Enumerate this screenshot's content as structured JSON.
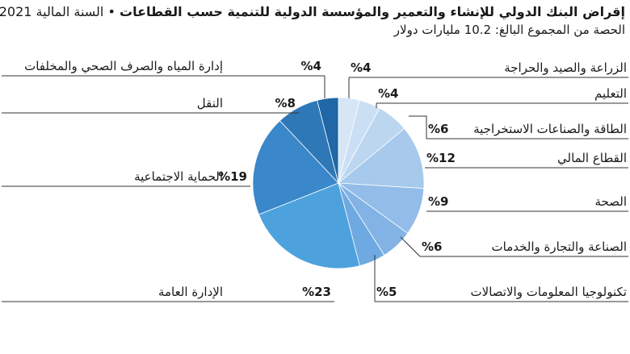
{
  "header": {
    "title_main": "إقراض البنك الدولي للإنشاء والتعمير والمؤسسة الدولية للتنمية حسب القطاعات",
    "title_sep": "•",
    "title_year": "السنة المالية 2021",
    "subtitle": "الحصة من المجموع البالغ: 10.2 مليارات دولار"
  },
  "chart_data": {
    "type": "pie",
    "title": "إقراض البنك الدولي للإنشاء والتعمير والمؤسسة الدولية للتنمية حسب القطاعات • السنة المالية 2021",
    "subtitle": "الحصة من المجموع البالغ: 10.2 مليارات دولار",
    "slices": [
      {
        "label": "الزراعة والصيد  والحراجة",
        "value": 4,
        "value_label": "%4",
        "color": "#d6e6f7"
      },
      {
        "label": "التعليم",
        "value": 4,
        "value_label": "%4",
        "color": "#cbdff4"
      },
      {
        "label": "الطاقة والصناعات الاستخراجية",
        "value": 6,
        "value_label": "%6",
        "color": "#bcd6f0"
      },
      {
        "label": "القطاع المالي",
        "value": 12,
        "value_label": "%12",
        "color": "#a6c9ec"
      },
      {
        "label": "الصحة",
        "value": 9,
        "value_label": "%9",
        "color": "#93bde8"
      },
      {
        "label": "الصناعة والتجارة والخدمات",
        "value": 6,
        "value_label": "%6",
        "color": "#82b3e4"
      },
      {
        "label": "تكنولوجيا المعلومات والاتصالات",
        "value": 5,
        "value_label": "%5",
        "color": "#6fa9e1"
      },
      {
        "label": "الإدارة العامة",
        "value": 23,
        "value_label": "%23",
        "color": "#4da2dd"
      },
      {
        "label": "الحماية الاجتماعية",
        "value": 19,
        "value_label": "%19",
        "color": "#3a87c9"
      },
      {
        "label": "النقل",
        "value": 8,
        "value_label": "%8",
        "color": "#2e78b8"
      },
      {
        "label": "إدارة المياه والصرف الصحي والمخلفات",
        "value": 4,
        "value_label": "%4",
        "color": "#1f67a6"
      }
    ]
  }
}
